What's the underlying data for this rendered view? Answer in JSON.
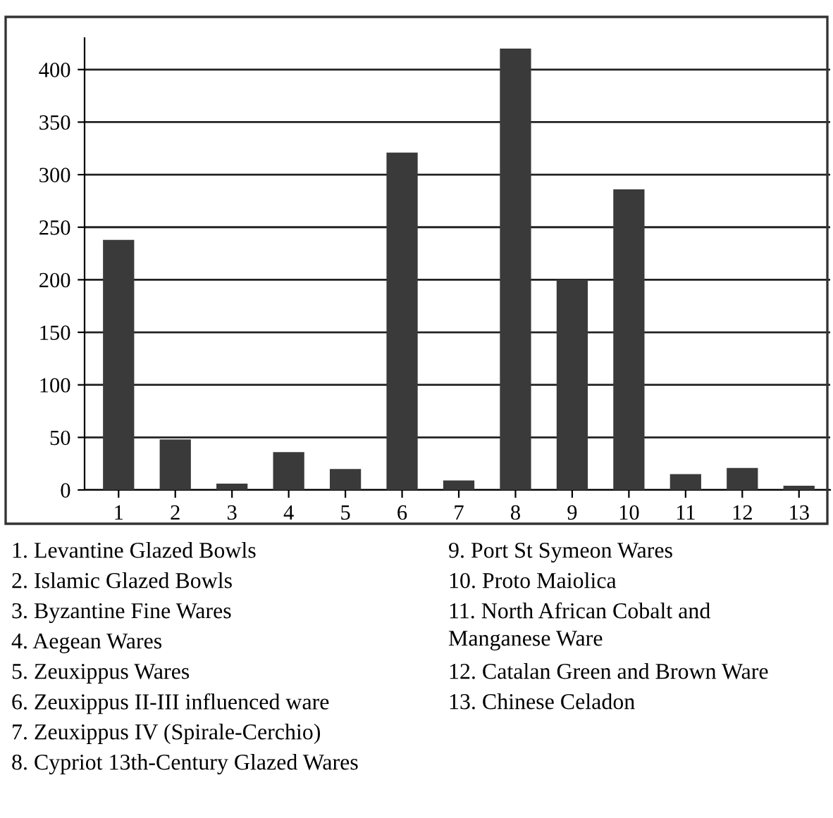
{
  "chart_data": {
    "type": "bar",
    "categories": [
      "1",
      "2",
      "3",
      "4",
      "5",
      "6",
      "7",
      "8",
      "9",
      "10",
      "11",
      "12",
      "13"
    ],
    "values": [
      238,
      48,
      6,
      36,
      20,
      321,
      9,
      420,
      200,
      286,
      15,
      21,
      4
    ],
    "color": "#3a3a3a",
    "ylim": [
      0,
      430
    ],
    "yticks": [
      0,
      50,
      100,
      150,
      200,
      250,
      300,
      350,
      400
    ],
    "grid": "y",
    "annotations": [
      "1. Levantine Glazed Bowls",
      "2. Islamic Glazed Bowls",
      "3. Byzantine Fine Wares",
      "4. Aegean Wares",
      "5. Zeuxippus Wares",
      "6. Zeuxippus II-III influenced ware",
      "7. Zeuxippus IV (Spirale-Cerchio)",
      "8. Cypriot 13th-Century Glazed Wares",
      "9. Port St Symeon Wares",
      "10. Proto Maiolica",
      "11. North African Cobalt and Manganese Ware",
      "12. Catalan Green and Brown Ware",
      "13. Chinese Celadon"
    ]
  }
}
